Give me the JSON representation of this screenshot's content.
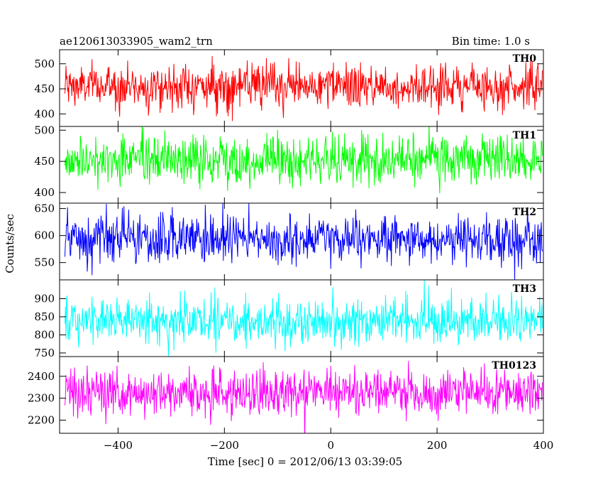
{
  "header": {
    "title": "ae120613033905_wam2_trn",
    "bin_time": "Bin time: 1.0 s"
  },
  "chart_data": {
    "type": "line",
    "xlabel": "Time [sec] 0 = 2012/06/13 03:39:05",
    "ylabel": "Counts/sec",
    "xlim": [
      -510,
      400
    ],
    "x_ticks": [
      -400,
      -200,
      0,
      200,
      400
    ],
    "x_tick_labels": [
      "−400",
      "−200",
      "0",
      "200",
      "400"
    ],
    "x_range": [
      -500,
      398
    ],
    "bin_time_s": 1.0,
    "panels": [
      {
        "label": "TH0",
        "color": "#ff0000",
        "ylim": [
          375,
          528
        ],
        "y_ticks": [
          400,
          450,
          500
        ],
        "mean": 455,
        "noise_sd": 22
      },
      {
        "label": "TH1",
        "color": "#00ff00",
        "ylim": [
          383,
          506
        ],
        "y_ticks": [
          400,
          450,
          500
        ],
        "mean": 452,
        "noise_sd": 20
      },
      {
        "label": "TH2",
        "color": "#0000ff",
        "ylim": [
          518,
          660
        ],
        "y_ticks": [
          550,
          600,
          650
        ],
        "mean": 592,
        "noise_sd": 23
      },
      {
        "label": "TH3",
        "color": "#00ffff",
        "ylim": [
          740,
          952
        ],
        "y_ticks": [
          750,
          800,
          850,
          900
        ],
        "mean": 838,
        "noise_sd": 32
      },
      {
        "label": "TH0123",
        "color": "#ff00ff",
        "ylim": [
          2140,
          2490
        ],
        "y_ticks": [
          2200,
          2300,
          2400
        ],
        "mean": 2325,
        "noise_sd": 55
      }
    ]
  }
}
